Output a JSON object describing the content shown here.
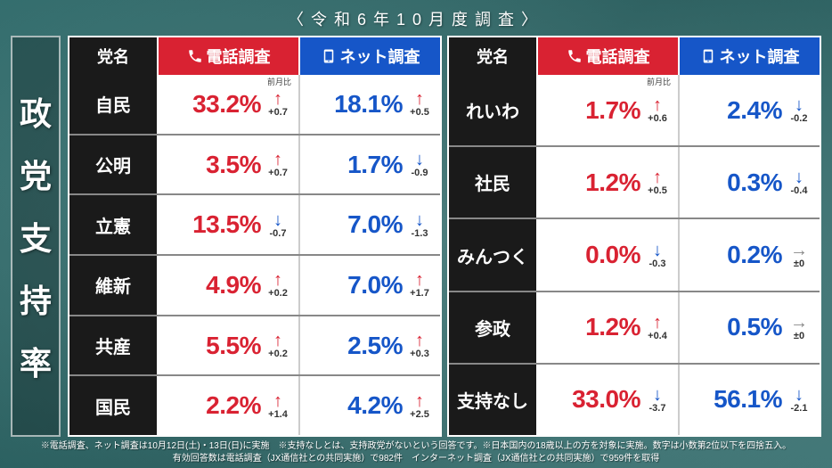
{
  "survey_title": "〈令和6年10月度調査〉",
  "side_title_chars": [
    "政",
    "党",
    "支",
    "持",
    "率"
  ],
  "headers": {
    "party": "党名",
    "phone": "電話調査",
    "net": "ネット調査",
    "mom_label": "前月比"
  },
  "colors": {
    "phone": "#d92232",
    "net": "#1656c8",
    "header_party_bg": "#1a1a1a",
    "arrow_up": "#d92232",
    "arrow_down": "#1656c8",
    "arrow_flat": "#888888"
  },
  "arrow_glyphs": {
    "up": "↑",
    "down": "↓",
    "flat": "→"
  },
  "left_rows": [
    {
      "party": "自民",
      "phone_pct": "33.2%",
      "phone_dir": "up",
      "phone_delta": "+0.7",
      "net_pct": "18.1%",
      "net_dir": "up",
      "net_delta": "+0.5"
    },
    {
      "party": "公明",
      "phone_pct": "3.5%",
      "phone_dir": "up",
      "phone_delta": "+0.7",
      "net_pct": "1.7%",
      "net_dir": "down",
      "net_delta": "-0.9"
    },
    {
      "party": "立憲",
      "phone_pct": "13.5%",
      "phone_dir": "down",
      "phone_delta": "-0.7",
      "net_pct": "7.0%",
      "net_dir": "down",
      "net_delta": "-1.3"
    },
    {
      "party": "維新",
      "phone_pct": "4.9%",
      "phone_dir": "up",
      "phone_delta": "+0.2",
      "net_pct": "7.0%",
      "net_dir": "up",
      "net_delta": "+1.7"
    },
    {
      "party": "共産",
      "phone_pct": "5.5%",
      "phone_dir": "up",
      "phone_delta": "+0.2",
      "net_pct": "2.5%",
      "net_dir": "up",
      "net_delta": "+0.3"
    },
    {
      "party": "国民",
      "phone_pct": "2.2%",
      "phone_dir": "up",
      "phone_delta": "+1.4",
      "net_pct": "4.2%",
      "net_dir": "up",
      "net_delta": "+2.5"
    }
  ],
  "right_rows": [
    {
      "party": "れいわ",
      "phone_pct": "1.7%",
      "phone_dir": "up",
      "phone_delta": "+0.6",
      "net_pct": "2.4%",
      "net_dir": "down",
      "net_delta": "-0.2"
    },
    {
      "party": "社民",
      "phone_pct": "1.2%",
      "phone_dir": "up",
      "phone_delta": "+0.5",
      "net_pct": "0.3%",
      "net_dir": "down",
      "net_delta": "-0.4"
    },
    {
      "party": "みんつく",
      "phone_pct": "0.0%",
      "phone_dir": "down",
      "phone_delta": "-0.3",
      "net_pct": "0.2%",
      "net_dir": "flat",
      "net_delta": "±0"
    },
    {
      "party": "参政",
      "phone_pct": "1.2%",
      "phone_dir": "up",
      "phone_delta": "+0.4",
      "net_pct": "0.5%",
      "net_dir": "flat",
      "net_delta": "±0"
    },
    {
      "party": "支持なし",
      "phone_pct": "33.0%",
      "phone_dir": "down",
      "phone_delta": "-3.7",
      "net_pct": "56.1%",
      "net_dir": "down",
      "net_delta": "-2.1"
    }
  ],
  "footnotes": [
    "※電話調査、ネット調査は10月12日(土)・13日(日)に実施　※支持なしとは、支持政党がないという回答です。※日本国内の18歳以上の方を対象に実施。数字は小数第2位以下を四捨五入。",
    "有効回答数は電話調査（JX通信社との共同実施）で982件　インターネット調査（JX通信社との共同実施）で959件を取得"
  ]
}
